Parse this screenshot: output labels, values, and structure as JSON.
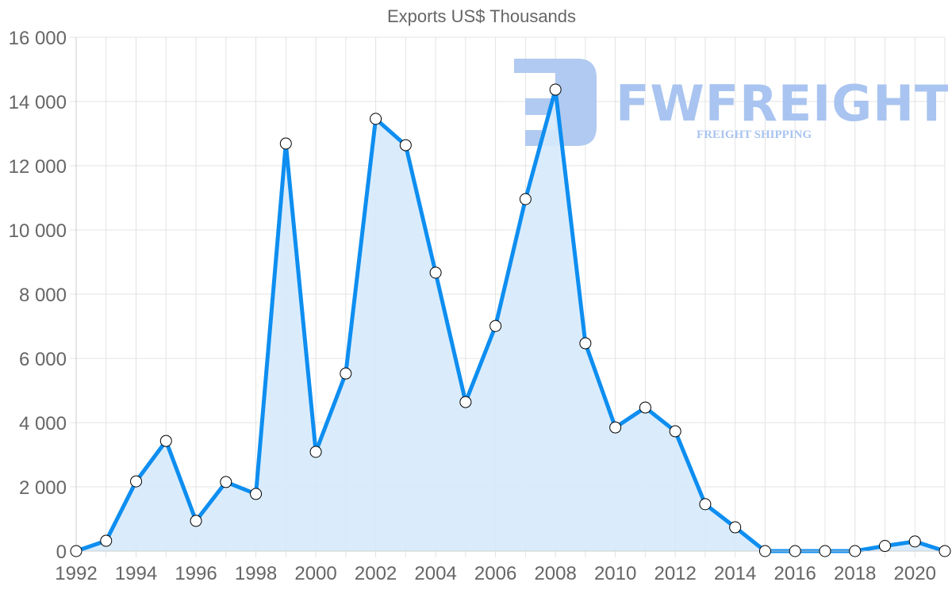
{
  "chart_data": {
    "type": "line",
    "title": "Exports US$ Thousands",
    "xlabel": "",
    "ylabel": "",
    "ylim": [
      0,
      16000
    ],
    "yticks": [
      0,
      2000,
      4000,
      6000,
      8000,
      10000,
      12000,
      14000,
      16000
    ],
    "ytick_labels": [
      "0",
      "2 000",
      "4 000",
      "6 000",
      "8 000",
      "10 000",
      "12 000",
      "14 000",
      "16 000"
    ],
    "xtick_labels": [
      "1992",
      "1994",
      "1996",
      "1998",
      "2000",
      "2002",
      "2004",
      "2006",
      "2008",
      "2010",
      "2012",
      "2014",
      "2016",
      "2018",
      "2020"
    ],
    "grid": true,
    "legend": "none",
    "area_fill": true,
    "x": [
      1992,
      1993,
      1994,
      1995,
      1996,
      1997,
      1998,
      1999,
      2000,
      2001,
      2002,
      2003,
      2004,
      2005,
      2006,
      2007,
      2008,
      2009,
      2010,
      2011,
      2012,
      2013,
      2014,
      2015,
      2016,
      2017,
      2018,
      2019,
      2020,
      2021
    ],
    "series": [
      {
        "name": "Exports US$ Thousands",
        "values": [
          0,
          320,
          2170,
          3430,
          940,
          2150,
          1780,
          12690,
          3090,
          5530,
          13460,
          12640,
          8670,
          4640,
          7010,
          10960,
          14370,
          6470,
          3850,
          4470,
          3730,
          1460,
          740,
          0,
          0,
          0,
          0,
          160,
          300,
          0
        ]
      }
    ],
    "colors": {
      "line": "#0e8ef0",
      "fill": "#d6eafc",
      "marker_fill": "#ffffff",
      "marker_stroke": "#000000"
    }
  },
  "watermark": {
    "brand": "FWFREIGHT",
    "tagline": "FREIGHT SHIPPING",
    "color": "#a9c4f0"
  }
}
